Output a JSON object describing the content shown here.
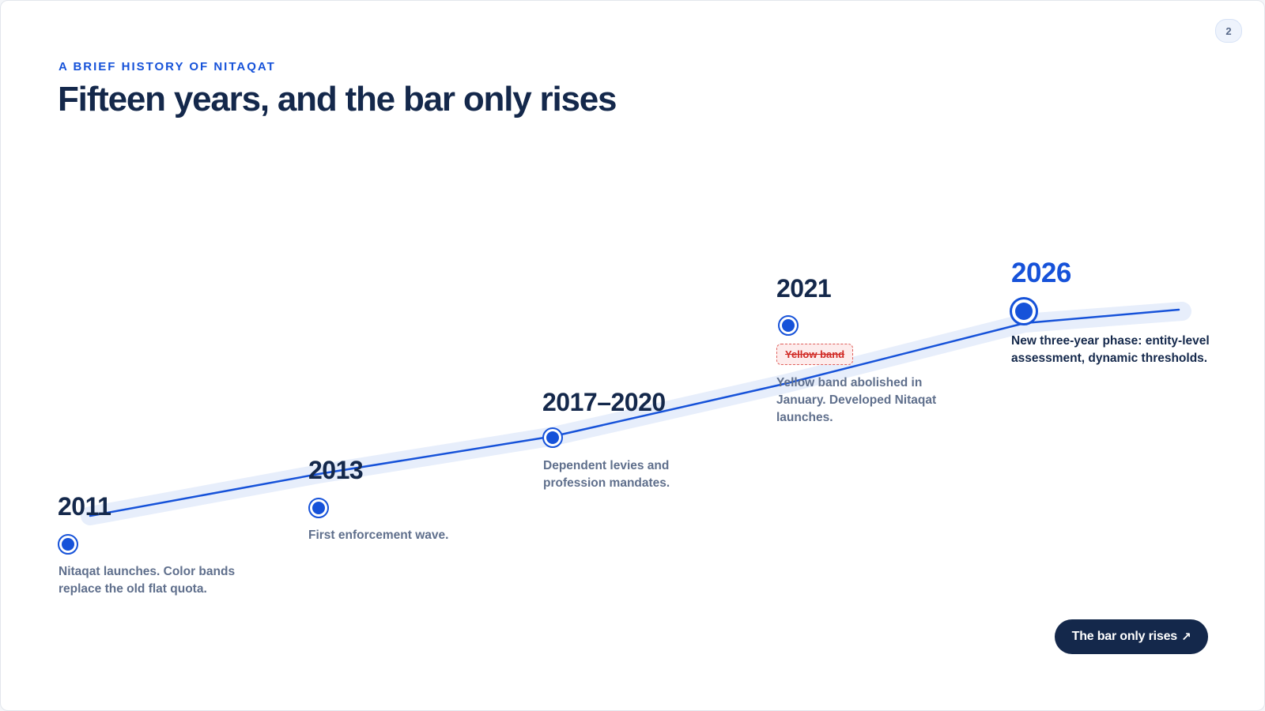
{
  "page_number": "2",
  "eyebrow": "A brief history of Nitaqat",
  "title": "Fifteen years, and the bar only rises",
  "milestones": [
    {
      "year": "2011",
      "text": "Nitaqat launches. Color bands replace the old flat quota."
    },
    {
      "year": "2013",
      "text": "First enforcement wave."
    },
    {
      "year": "2017–2020",
      "text": "Dependent levies and profession mandates."
    },
    {
      "year": "2021",
      "tag": "Yellow band",
      "text": "Yellow band abolished in January. Developed Nitaqat launches."
    },
    {
      "year": "2026",
      "text": "New three-year phase: entity-level assessment, dynamic thresholds."
    }
  ],
  "cta": {
    "label": "The bar only rises",
    "icon": "arrow-up-right-icon"
  },
  "colors": {
    "accent": "#1652d9",
    "ink": "#14284b",
    "muted": "#5f6f8c",
    "track": "#e7eefb",
    "strike": "#d12a25"
  }
}
